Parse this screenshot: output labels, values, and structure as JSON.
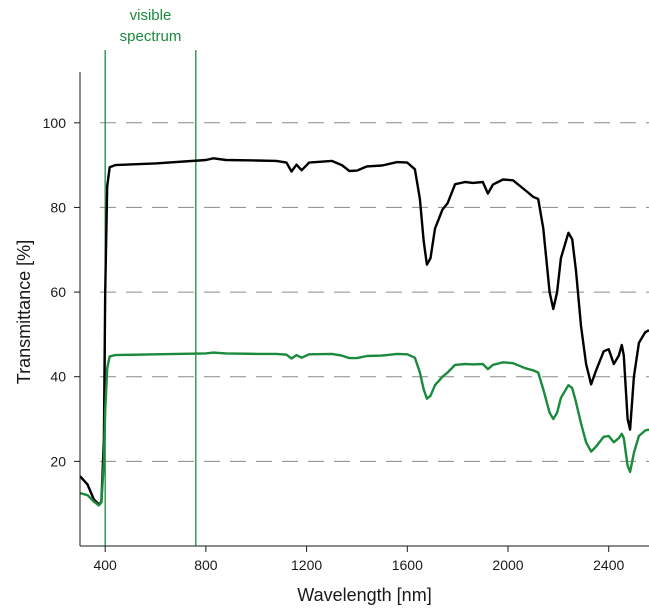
{
  "chart_data": {
    "type": "line",
    "title": "",
    "xlabel": "Wavelength [nm]",
    "ylabel": "Transmittance [%]",
    "xlim": [
      300,
      2560
    ],
    "ylim": [
      0,
      112
    ],
    "x_ticks": [
      400,
      800,
      1200,
      1600,
      2000,
      2400
    ],
    "y_ticks": [
      20,
      40,
      60,
      80,
      100
    ],
    "grid": "horizontal dashed lines at y ticks",
    "legend": "none",
    "annotations": [
      {
        "text": "visible spectrum",
        "x_range": [
          400,
          760
        ],
        "color": "#1a8a3c"
      }
    ],
    "series": [
      {
        "color": "#000000",
        "points": [
          [
            300,
            16.5
          ],
          [
            330,
            14.5
          ],
          [
            355,
            11.0
          ],
          [
            375,
            9.8
          ],
          [
            385,
            10.5
          ],
          [
            395,
            25.0
          ],
          [
            400,
            60.0
          ],
          [
            408,
            85.0
          ],
          [
            418,
            89.5
          ],
          [
            440,
            90.0
          ],
          [
            600,
            90.4
          ],
          [
            800,
            91.2
          ],
          [
            830,
            91.6
          ],
          [
            880,
            91.2
          ],
          [
            1000,
            91.1
          ],
          [
            1080,
            91.0
          ],
          [
            1120,
            90.6
          ],
          [
            1140,
            88.5
          ],
          [
            1160,
            90.1
          ],
          [
            1180,
            88.8
          ],
          [
            1210,
            90.6
          ],
          [
            1300,
            91.0
          ],
          [
            1340,
            90.0
          ],
          [
            1370,
            88.6
          ],
          [
            1400,
            88.7
          ],
          [
            1440,
            89.7
          ],
          [
            1500,
            89.9
          ],
          [
            1560,
            90.7
          ],
          [
            1600,
            90.6
          ],
          [
            1630,
            89.0
          ],
          [
            1650,
            82.0
          ],
          [
            1665,
            72.0
          ],
          [
            1678,
            66.5
          ],
          [
            1692,
            68.0
          ],
          [
            1710,
            75.0
          ],
          [
            1740,
            79.5
          ],
          [
            1760,
            81.0
          ],
          [
            1790,
            85.5
          ],
          [
            1830,
            86.0
          ],
          [
            1860,
            85.8
          ],
          [
            1900,
            86.0
          ],
          [
            1920,
            83.3
          ],
          [
            1940,
            85.4
          ],
          [
            1980,
            86.6
          ],
          [
            2020,
            86.4
          ],
          [
            2070,
            84.0
          ],
          [
            2100,
            82.5
          ],
          [
            2120,
            82.0
          ],
          [
            2140,
            75.0
          ],
          [
            2165,
            60.0
          ],
          [
            2180,
            56.0
          ],
          [
            2195,
            60.0
          ],
          [
            2210,
            68.0
          ],
          [
            2240,
            74.0
          ],
          [
            2255,
            72.5
          ],
          [
            2270,
            65.0
          ],
          [
            2290,
            52.0
          ],
          [
            2310,
            43.0
          ],
          [
            2330,
            38.2
          ],
          [
            2350,
            41.5
          ],
          [
            2380,
            46.0
          ],
          [
            2400,
            46.5
          ],
          [
            2420,
            43.0
          ],
          [
            2440,
            45.0
          ],
          [
            2452,
            47.5
          ],
          [
            2460,
            45.0
          ],
          [
            2475,
            30.0
          ],
          [
            2485,
            27.5
          ],
          [
            2500,
            40.0
          ],
          [
            2520,
            48.0
          ],
          [
            2545,
            50.5
          ],
          [
            2560,
            51.0
          ]
        ]
      },
      {
        "color": "#1a8a3c",
        "points": [
          [
            300,
            12.5
          ],
          [
            330,
            12.0
          ],
          [
            355,
            10.5
          ],
          [
            375,
            9.6
          ],
          [
            385,
            10.3
          ],
          [
            395,
            20.0
          ],
          [
            400,
            32.0
          ],
          [
            408,
            42.0
          ],
          [
            418,
            44.8
          ],
          [
            440,
            45.1
          ],
          [
            600,
            45.3
          ],
          [
            800,
            45.5
          ],
          [
            830,
            45.7
          ],
          [
            880,
            45.5
          ],
          [
            1000,
            45.4
          ],
          [
            1080,
            45.4
          ],
          [
            1120,
            45.2
          ],
          [
            1140,
            44.3
          ],
          [
            1160,
            45.1
          ],
          [
            1180,
            44.5
          ],
          [
            1210,
            45.3
          ],
          [
            1300,
            45.4
          ],
          [
            1340,
            45.0
          ],
          [
            1370,
            44.4
          ],
          [
            1400,
            44.4
          ],
          [
            1440,
            44.9
          ],
          [
            1500,
            45.0
          ],
          [
            1560,
            45.4
          ],
          [
            1600,
            45.3
          ],
          [
            1630,
            44.5
          ],
          [
            1650,
            41.0
          ],
          [
            1665,
            37.0
          ],
          [
            1678,
            34.8
          ],
          [
            1692,
            35.5
          ],
          [
            1710,
            38.0
          ],
          [
            1740,
            40.0
          ],
          [
            1760,
            41.0
          ],
          [
            1790,
            42.8
          ],
          [
            1830,
            43.0
          ],
          [
            1860,
            42.9
          ],
          [
            1900,
            43.0
          ],
          [
            1920,
            41.8
          ],
          [
            1940,
            42.8
          ],
          [
            1980,
            43.4
          ],
          [
            2020,
            43.2
          ],
          [
            2070,
            42.0
          ],
          [
            2100,
            41.5
          ],
          [
            2120,
            41.0
          ],
          [
            2140,
            37.0
          ],
          [
            2165,
            31.5
          ],
          [
            2180,
            30.0
          ],
          [
            2195,
            31.5
          ],
          [
            2210,
            35.0
          ],
          [
            2240,
            38.0
          ],
          [
            2255,
            37.3
          ],
          [
            2270,
            34.0
          ],
          [
            2290,
            29.0
          ],
          [
            2310,
            24.5
          ],
          [
            2330,
            22.3
          ],
          [
            2350,
            23.5
          ],
          [
            2380,
            25.8
          ],
          [
            2400,
            26.0
          ],
          [
            2420,
            24.5
          ],
          [
            2440,
            25.5
          ],
          [
            2452,
            26.5
          ],
          [
            2460,
            25.5
          ],
          [
            2475,
            19.0
          ],
          [
            2485,
            17.5
          ],
          [
            2500,
            22.0
          ],
          [
            2520,
            26.0
          ],
          [
            2545,
            27.3
          ],
          [
            2560,
            27.5
          ]
        ]
      }
    ]
  }
}
